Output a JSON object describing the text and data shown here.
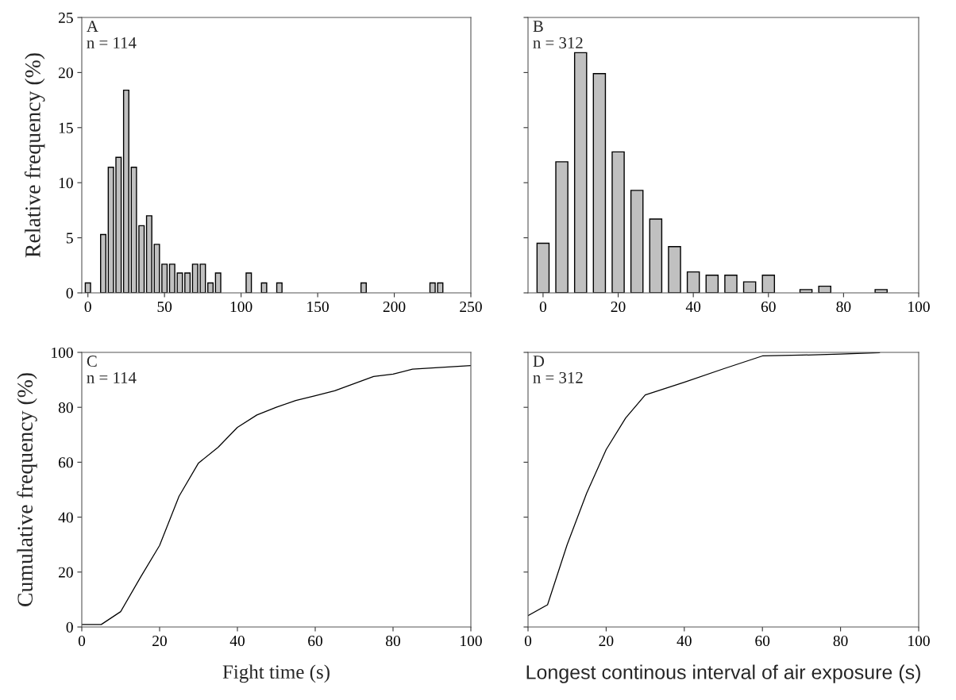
{
  "chart_data": [
    {
      "type": "bar",
      "annotations": [
        "A",
        "n = 114"
      ],
      "ylabel": "Relative frequency (%)",
      "color": "#c0c0c0",
      "x": [
        0,
        10,
        15,
        20,
        25,
        30,
        35,
        40,
        45,
        50,
        55,
        60,
        65,
        70,
        75,
        80,
        85,
        105,
        115,
        125,
        180,
        225,
        230
      ],
      "values": [
        0.9,
        5.3,
        11.4,
        12.3,
        18.4,
        11.4,
        6.1,
        7.0,
        4.4,
        2.6,
        2.6,
        1.8,
        1.8,
        2.6,
        2.6,
        0.9,
        1.8,
        1.8,
        0.9,
        0.9,
        0.9,
        0.9,
        0.9
      ],
      "xlim": [
        -4,
        250
      ],
      "xticks": [
        0,
        50,
        100,
        150,
        200,
        250
      ],
      "ylim": [
        0,
        25
      ],
      "yticks": [
        0,
        5,
        10,
        15,
        20,
        25
      ],
      "grid": false,
      "legend": false
    },
    {
      "type": "bar",
      "annotations": [
        "B",
        "n = 312"
      ],
      "color": "#c0c0c0",
      "x": [
        0,
        5,
        10,
        15,
        20,
        25,
        30,
        35,
        40,
        45,
        50,
        55,
        60,
        70,
        75,
        90
      ],
      "values": [
        4.5,
        11.9,
        21.8,
        19.9,
        12.8,
        9.3,
        6.7,
        4.2,
        1.9,
        1.6,
        1.6,
        1.0,
        1.6,
        0.3,
        0.6,
        0.3
      ],
      "xlim": [
        -4,
        100
      ],
      "xticks": [
        0,
        20,
        40,
        60,
        80,
        100
      ],
      "ylim": [
        0,
        25
      ],
      "yticks": [
        0,
        5,
        10,
        15,
        20,
        25
      ],
      "tick_labels": "x",
      "grid": false,
      "legend": false
    },
    {
      "type": "line",
      "annotations": [
        "C",
        "n = 114"
      ],
      "ylabel": "Cumulative frequency (%)",
      "xlabel": "Fight time (s)",
      "color": "#000000",
      "x": [
        0,
        5,
        10,
        15,
        20,
        25,
        30,
        35,
        40,
        45,
        50,
        55,
        60,
        65,
        70,
        75,
        80,
        85,
        100
      ],
      "values": [
        0.9,
        0.9,
        5.6,
        17.9,
        29.7,
        47.6,
        59.7,
        65.4,
        72.7,
        77.2,
        80.0,
        82.5,
        84.2,
        86.0,
        88.6,
        91.2,
        92.1,
        93.9,
        95.2
      ],
      "xlim": [
        0,
        100
      ],
      "xticks": [
        0,
        20,
        40,
        60,
        80,
        100
      ],
      "ylim": [
        0,
        100
      ],
      "yticks": [
        0,
        20,
        40,
        60,
        80,
        100
      ],
      "grid": false,
      "legend": false,
      "marker": "none",
      "line_style": "solid"
    },
    {
      "type": "line",
      "annotations": [
        "D",
        "n = 312"
      ],
      "xlabel": "Longest continous interval of air exposure (s)",
      "color": "#000000",
      "x": [
        0,
        5,
        10,
        15,
        20,
        25,
        30,
        40,
        50,
        60,
        70,
        80,
        90
      ],
      "values": [
        4.1,
        8.1,
        29.9,
        48.7,
        64.6,
        76.1,
        84.5,
        89.1,
        94.0,
        98.7,
        99.0,
        99.4,
        99.9
      ],
      "xlim": [
        0,
        100
      ],
      "xticks": [
        0,
        20,
        40,
        60,
        80,
        100
      ],
      "ylim": [
        0,
        100
      ],
      "yticks": [
        0,
        20,
        40,
        60,
        80,
        100
      ],
      "tick_labels": "x",
      "grid": false,
      "legend": false,
      "marker": "none",
      "line_style": "solid"
    }
  ]
}
